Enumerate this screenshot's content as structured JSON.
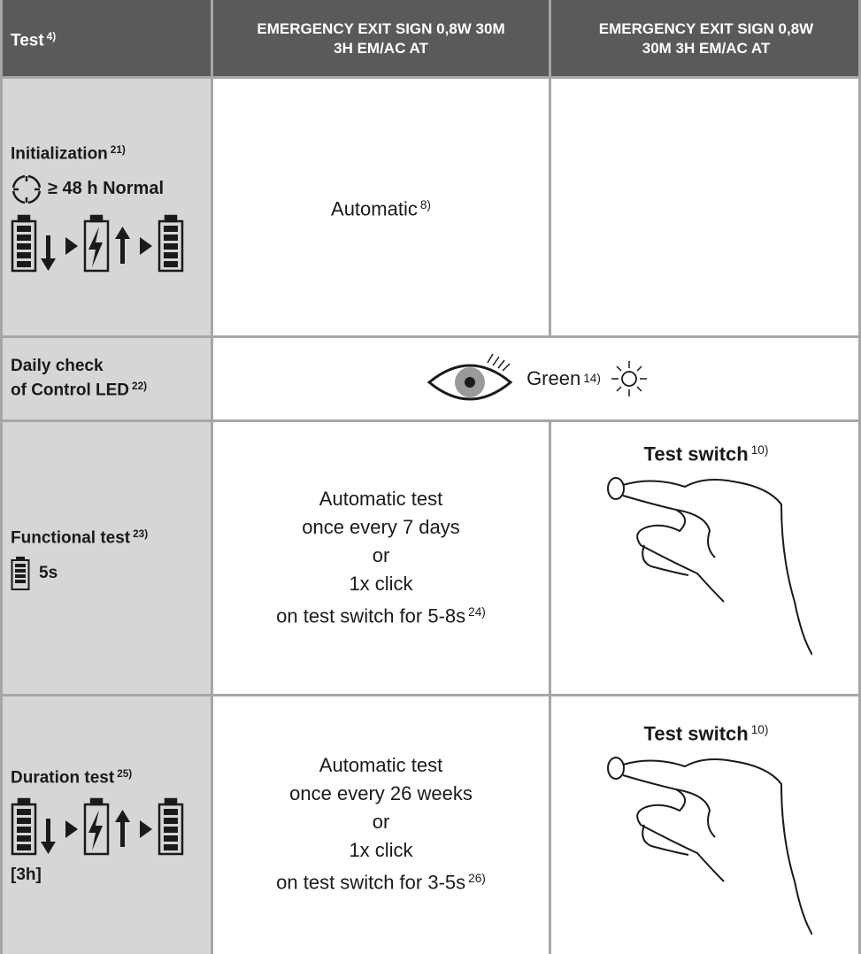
{
  "header": {
    "cells": [
      {
        "text": "Test",
        "note": "4)"
      },
      {
        "lines": [
          "EMERGENCY EXIT SIGN 0,8W 30M",
          "3H EM/AC AT"
        ]
      },
      {
        "lines": [
          "EMERGENCY EXIT SIGN 0,8W",
          "30M 3H EM/AC AT"
        ]
      }
    ]
  },
  "rows": [
    {
      "label": {
        "lines": [
          "Initialization"
        ],
        "note": "21)"
      },
      "detail": "≥ 48 h Normal",
      "cell": {
        "lines": [
          "Automatic"
        ],
        "note": "8)"
      }
    },
    {
      "label": {
        "lines": [
          "Daily check",
          "of Control LED"
        ],
        "note": "22)"
      },
      "cell": {
        "lines": [
          "Green"
        ],
        "note": "14)"
      }
    },
    {
      "label": {
        "lines": [
          "Functional test"
        ],
        "note": "23)"
      },
      "detail": "5s",
      "cell": {
        "lines": [
          "Automatic test",
          "once every 7 days",
          "or",
          "1x click",
          "on test switch for 5-8s"
        ],
        "note": "24)"
      },
      "switch": {
        "text": "Test switch",
        "note": "10)"
      }
    },
    {
      "label": {
        "lines": [
          "Duration test"
        ],
        "note": "25)"
      },
      "detail": "[3h]",
      "cell": {
        "lines": [
          "Automatic test",
          "once every 26 weeks",
          "or",
          "1x click",
          "on test switch for 3-5s"
        ],
        "note": "26)"
      },
      "switch": {
        "text": "Test switch",
        "note": "10)"
      }
    }
  ]
}
